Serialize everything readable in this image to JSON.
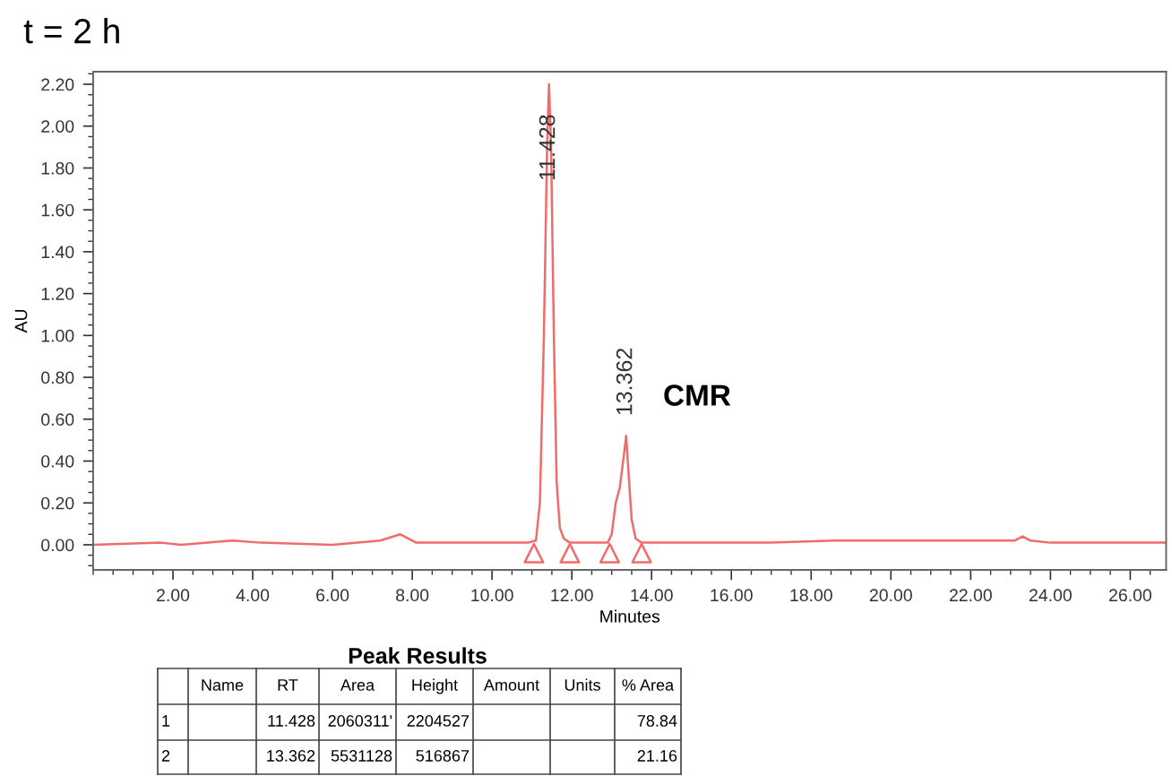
{
  "chart_data": {
    "type": "line",
    "title": "t = 2 h",
    "xlabel": "Minutes",
    "ylabel": "AU",
    "xlim": [
      0,
      26.9
    ],
    "ylim": [
      -0.12,
      2.26
    ],
    "xticks": [
      {
        "value": 2,
        "label": "2.00"
      },
      {
        "value": 4,
        "label": "4.00"
      },
      {
        "value": 6,
        "label": "6.00"
      },
      {
        "value": 8,
        "label": "8.00"
      },
      {
        "value": 10,
        "label": "10.00"
      },
      {
        "value": 12,
        "label": "12.00"
      },
      {
        "value": 14,
        "label": "14.00"
      },
      {
        "value": 16,
        "label": "16.00"
      },
      {
        "value": 18,
        "label": "18.00"
      },
      {
        "value": 20,
        "label": "20.00"
      },
      {
        "value": 22,
        "label": "22.00"
      },
      {
        "value": 24,
        "label": "24.00"
      },
      {
        "value": 26,
        "label": "26.00"
      }
    ],
    "yticks": [
      {
        "value": 0,
        "label": "0.00"
      },
      {
        "value": 0.2,
        "label": "0.20"
      },
      {
        "value": 0.4,
        "label": "0.40"
      },
      {
        "value": 0.6,
        "label": "0.60"
      },
      {
        "value": 0.8,
        "label": "0.80"
      },
      {
        "value": 1.0,
        "label": "1.00"
      },
      {
        "value": 1.2,
        "label": "1.20"
      },
      {
        "value": 1.4,
        "label": "1.40"
      },
      {
        "value": 1.6,
        "label": "1.60"
      },
      {
        "value": 1.8,
        "label": "1.80"
      },
      {
        "value": 2.0,
        "label": "2.00"
      },
      {
        "value": 2.2,
        "label": "2.20"
      }
    ],
    "series": [
      {
        "color": "#f26b6b",
        "x": [
          0,
          1.7,
          2.2,
          3.5,
          4.2,
          6,
          7.2,
          7.7,
          8.1,
          10.9,
          11.1,
          11.2,
          11.3,
          11.38,
          11.428,
          11.48,
          11.55,
          11.62,
          11.7,
          11.8,
          11.95,
          12.9,
          13.0,
          13.1,
          13.2,
          13.3,
          13.362,
          13.42,
          13.5,
          13.6,
          13.75,
          15,
          17,
          18.6,
          20.5,
          23.1,
          23.3,
          23.5,
          24,
          26.9
        ],
        "values": [
          0,
          0.01,
          0,
          0.02,
          0.01,
          0,
          0.02,
          0.05,
          0.01,
          0.01,
          0.02,
          0.2,
          1.0,
          1.9,
          2.2,
          1.9,
          1.0,
          0.3,
          0.08,
          0.03,
          0.01,
          0.01,
          0.05,
          0.2,
          0.27,
          0.42,
          0.52,
          0.35,
          0.12,
          0.03,
          0.01,
          0.01,
          0.01,
          0.02,
          0.02,
          0.02,
          0.04,
          0.02,
          0.01,
          0.01
        ]
      },
      {
        "type": "scatter",
        "color": "#f26b6b",
        "marker": "triangle",
        "x": [
          11.05,
          11.95,
          12.95,
          13.75
        ],
        "values": [
          -0.04,
          -0.04,
          -0.04,
          -0.04
        ]
      }
    ],
    "annotations": [
      {
        "text": "11.428",
        "x": 11.428,
        "y": 2.2
      },
      {
        "text": "13.362",
        "x": 13.362,
        "y": 0.52
      },
      "CMR",
      "Peak Results",
      "Name",
      "RT",
      "Area",
      "Height",
      "Amount",
      "Units",
      "% Area",
      "1",
      "11.428",
      "2060311'",
      "2204527",
      "78.84",
      "2",
      "13.362",
      "5531128",
      "516867",
      "21.16"
    ]
  }
}
